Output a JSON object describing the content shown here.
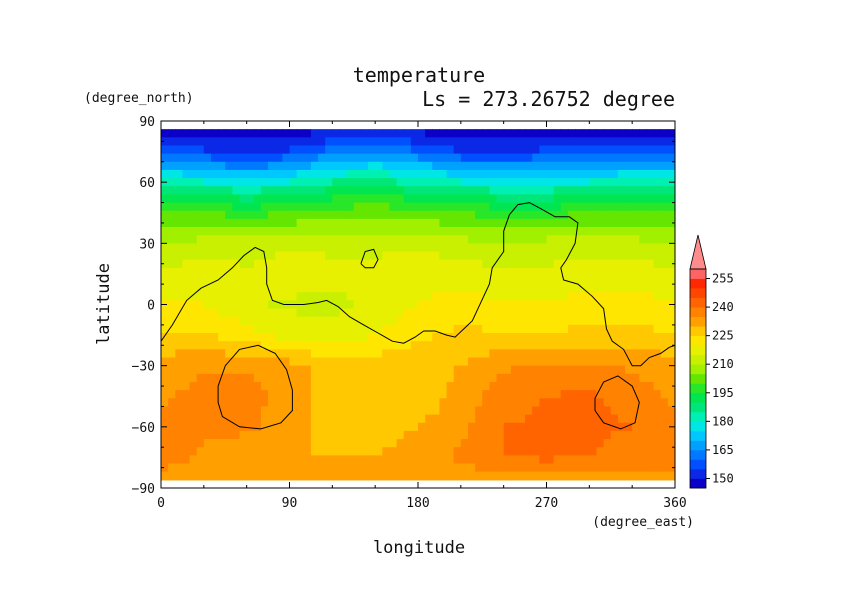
{
  "chart_data": {
    "type": "heatmap",
    "title": "temperature",
    "subtitle": "Ls = 273.26752 degree",
    "xlabel": "longitude",
    "ylabel": "latitude",
    "x_unit": "(degree_east)",
    "y_unit": "(degree_north)",
    "xlim": [
      0,
      360
    ],
    "ylim": [
      -90,
      90
    ],
    "x_ticks": [
      "0",
      "90",
      "180",
      "270",
      "360"
    ],
    "x_tick_values": [
      0,
      90,
      180,
      270,
      360
    ],
    "y_ticks": [
      "90",
      "60",
      "30",
      "0",
      "−30",
      "−60",
      "−90"
    ],
    "y_tick_values": [
      90,
      60,
      30,
      0,
      -30,
      -60,
      -90
    ],
    "colorbar": {
      "labels": [
        "255",
        "240",
        "225",
        "210",
        "195",
        "180",
        "165",
        "150"
      ],
      "label_values": [
        255,
        240,
        225,
        210,
        195,
        180,
        165,
        150
      ],
      "min": 145,
      "max": 265,
      "step": 5,
      "colors": [
        "#0a00c8",
        "#0a28e6",
        "#0050ff",
        "#0078ff",
        "#00a0ff",
        "#00c8ff",
        "#00e6e6",
        "#00f0b4",
        "#00e678",
        "#00e650",
        "#28e628",
        "#64e600",
        "#a0f000",
        "#c8f000",
        "#e6f000",
        "#ffe600",
        "#ffc800",
        "#ffa000",
        "#ff8200",
        "#ff6400",
        "#ff4600",
        "#ff2800",
        "#ff6464",
        "#ff8c8c"
      ]
    },
    "temperature_grid": {
      "lon": [
        0,
        30,
        60,
        90,
        120,
        150,
        180,
        210,
        240,
        270,
        300,
        330,
        360
      ],
      "lat": [
        86,
        75,
        65,
        55,
        45,
        30,
        15,
        0,
        -15,
        -30,
        -45,
        -60,
        -75,
        -86
      ],
      "values": [
        [
          148,
          148,
          148,
          148,
          148,
          150,
          148,
          148,
          148,
          148,
          148,
          148,
          148
        ],
        [
          158,
          156,
          152,
          156,
          162,
          165,
          160,
          155,
          154,
          156,
          156,
          158,
          158
        ],
        [
          175,
          172,
          168,
          172,
          178,
          180,
          176,
          172,
          170,
          172,
          172,
          174,
          175
        ],
        [
          190,
          188,
          186,
          188,
          192,
          194,
          190,
          188,
          186,
          186,
          188,
          190,
          190
        ],
        [
          200,
          200,
          198,
          200,
          202,
          204,
          202,
          200,
          198,
          198,
          200,
          200,
          200
        ],
        [
          210,
          212,
          212,
          214,
          214,
          214,
          214,
          212,
          210,
          212,
          212,
          212,
          210
        ],
        [
          216,
          218,
          216,
          218,
          216,
          216,
          218,
          218,
          216,
          216,
          218,
          218,
          216
        ],
        [
          220,
          220,
          216,
          214,
          214,
          216,
          220,
          222,
          220,
          220,
          222,
          222,
          220
        ],
        [
          226,
          226,
          222,
          218,
          216,
          220,
          224,
          226,
          226,
          226,
          226,
          226,
          226
        ],
        [
          232,
          234,
          234,
          232,
          228,
          228,
          228,
          230,
          234,
          236,
          236,
          234,
          232
        ],
        [
          234,
          237,
          238,
          232,
          228,
          226,
          226,
          232,
          238,
          240,
          241,
          238,
          234
        ],
        [
          236,
          236,
          236,
          232,
          228,
          228,
          230,
          234,
          240,
          241,
          241,
          240,
          236
        ],
        [
          238,
          234,
          232,
          230,
          230,
          230,
          232,
          236,
          240,
          241,
          240,
          238,
          238
        ],
        [
          232,
          232,
          232,
          232,
          232,
          232,
          232,
          232,
          232,
          232,
          232,
          232,
          232
        ]
      ]
    },
    "contour_lines": [
      [
        [
          0,
          -18
        ],
        [
          8,
          -10
        ],
        [
          18,
          2
        ],
        [
          28,
          8
        ],
        [
          40,
          12
        ],
        [
          50,
          18
        ],
        [
          58,
          24
        ],
        [
          66,
          28
        ],
        [
          72,
          26
        ],
        [
          74,
          18
        ],
        [
          74,
          10
        ],
        [
          78,
          2
        ],
        [
          86,
          0
        ],
        [
          100,
          0
        ],
        [
          110,
          1
        ],
        [
          116,
          2
        ],
        [
          124,
          -1
        ],
        [
          132,
          -6
        ],
        [
          142,
          -10
        ],
        [
          152,
          -14
        ],
        [
          162,
          -18
        ],
        [
          170,
          -19
        ],
        [
          178,
          -16
        ],
        [
          184,
          -13
        ],
        [
          192,
          -13
        ],
        [
          200,
          -15
        ],
        [
          206,
          -16
        ],
        [
          212,
          -12
        ],
        [
          218,
          -8
        ],
        [
          222,
          -2
        ],
        [
          226,
          4
        ],
        [
          230,
          10
        ],
        [
          232,
          18
        ],
        [
          236,
          22
        ],
        [
          240,
          26
        ],
        [
          240,
          36
        ],
        [
          244,
          44
        ],
        [
          250,
          49
        ],
        [
          258,
          50
        ],
        [
          266,
          47
        ],
        [
          276,
          43
        ],
        [
          286,
          43
        ],
        [
          292,
          40
        ],
        [
          290,
          30
        ],
        [
          284,
          22
        ],
        [
          280,
          18
        ],
        [
          282,
          12
        ],
        [
          292,
          10
        ],
        [
          302,
          4
        ],
        [
          310,
          -2
        ],
        [
          312,
          -12
        ],
        [
          316,
          -18
        ],
        [
          324,
          -22
        ],
        [
          330,
          -30
        ],
        [
          336,
          -30
        ],
        [
          342,
          -26
        ],
        [
          350,
          -24
        ],
        [
          356,
          -21
        ],
        [
          360,
          -20
        ]
      ],
      [
        [
          140,
          20
        ],
        [
          143,
          26
        ],
        [
          149,
          27
        ],
        [
          152,
          22
        ],
        [
          149,
          18
        ],
        [
          143,
          18
        ],
        [
          140,
          20
        ]
      ],
      [
        [
          40,
          -40
        ],
        [
          45,
          -30
        ],
        [
          55,
          -22
        ],
        [
          68,
          -20
        ],
        [
          80,
          -24
        ],
        [
          88,
          -32
        ],
        [
          92,
          -42
        ],
        [
          92,
          -52
        ],
        [
          84,
          -58
        ],
        [
          70,
          -61
        ],
        [
          55,
          -60
        ],
        [
          43,
          -55
        ],
        [
          40,
          -48
        ],
        [
          40,
          -40
        ]
      ],
      [
        [
          304,
          -46
        ],
        [
          310,
          -38
        ],
        [
          320,
          -35
        ],
        [
          330,
          -40
        ],
        [
          335,
          -48
        ],
        [
          332,
          -58
        ],
        [
          322,
          -61
        ],
        [
          310,
          -58
        ],
        [
          304,
          -52
        ],
        [
          304,
          -46
        ]
      ]
    ]
  }
}
